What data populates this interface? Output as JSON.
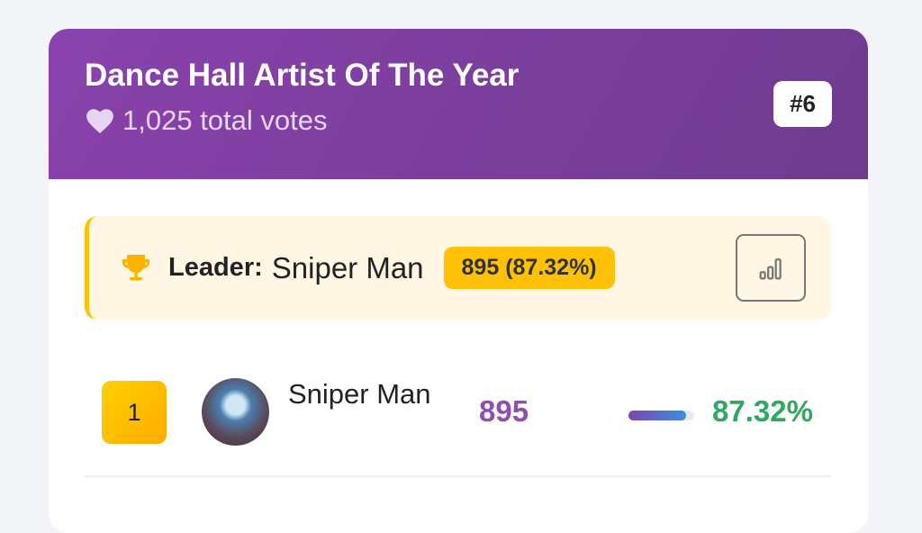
{
  "category": {
    "title": "Dance Hall Artist Of The Year",
    "total_votes": "1,025 total votes",
    "rank_badge": "#6"
  },
  "leader": {
    "label": "Leader:",
    "name": "Sniper Man",
    "votes_badge": "895 (87.32%)"
  },
  "nominees": [
    {
      "rank": "1",
      "name": "Sniper Man",
      "votes": "895",
      "percent": "87.32%",
      "percent_value": 87.32
    }
  ],
  "colors": {
    "header": "#8a42ad",
    "leader_accent": "#ffc107",
    "votes": "#8e4fb0",
    "percent": "#2ea862"
  }
}
